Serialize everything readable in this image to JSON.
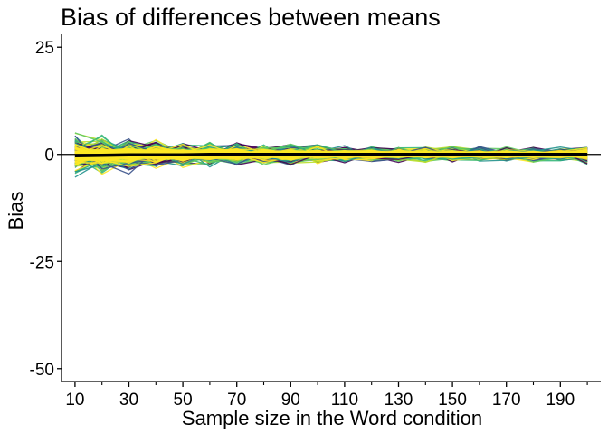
{
  "chart_data": {
    "type": "line",
    "title": "Bias of differences between means",
    "xlabel": "Sample size in the Word condition",
    "ylabel": "Bias",
    "xlim": [
      5,
      205
    ],
    "ylim": [
      -53,
      28
    ],
    "x_ticks": [
      10,
      30,
      50,
      70,
      90,
      110,
      130,
      150,
      170,
      190
    ],
    "x_minor_ticks": [
      20,
      40,
      60,
      80,
      100,
      120,
      140,
      160,
      180,
      200
    ],
    "y_ticks": [
      25,
      0,
      -25,
      -50
    ],
    "y_tick_labels": [
      "25",
      "0",
      "-25",
      "-50"
    ],
    "grid": false,
    "reference_line_y": 0,
    "mean_series": {
      "color": "#000000",
      "x": [
        10,
        20,
        30,
        40,
        50,
        60,
        70,
        80,
        90,
        100,
        110,
        120,
        130,
        140,
        150,
        160,
        170,
        180,
        190,
        200
      ],
      "values": [
        -0.3,
        -0.2,
        -0.1,
        -0.1,
        -0.1,
        0,
        0,
        0,
        0,
        0,
        0,
        0,
        0,
        0,
        0,
        0,
        0,
        0,
        0,
        0
      ]
    },
    "simulation_band": {
      "x": [
        10,
        20,
        30,
        40,
        50,
        60,
        70,
        80,
        90,
        100,
        110,
        120,
        130,
        140,
        150,
        160,
        170,
        180,
        190,
        200
      ],
      "upper": [
        6.5,
        4.5,
        5,
        3.5,
        3,
        2.8,
        2.7,
        2.5,
        2.4,
        2.2,
        2.1,
        2.1,
        2.0,
        1.9,
        1.9,
        1.8,
        1.8,
        1.7,
        1.7,
        1.6
      ],
      "lower": [
        -6.5,
        -5.5,
        -5,
        -4.5,
        -3.8,
        -3.5,
        -3.3,
        -3.2,
        -3.8,
        -2.8,
        -2.5,
        -2.4,
        -2.3,
        -2.2,
        -2.2,
        -2.1,
        -2.1,
        -2.0,
        -2.0,
        -3.0
      ]
    },
    "palette": [
      "#440154",
      "#3b528b",
      "#21918c",
      "#35b779",
      "#5ec962",
      "#b8de29",
      "#fde725"
    ]
  }
}
